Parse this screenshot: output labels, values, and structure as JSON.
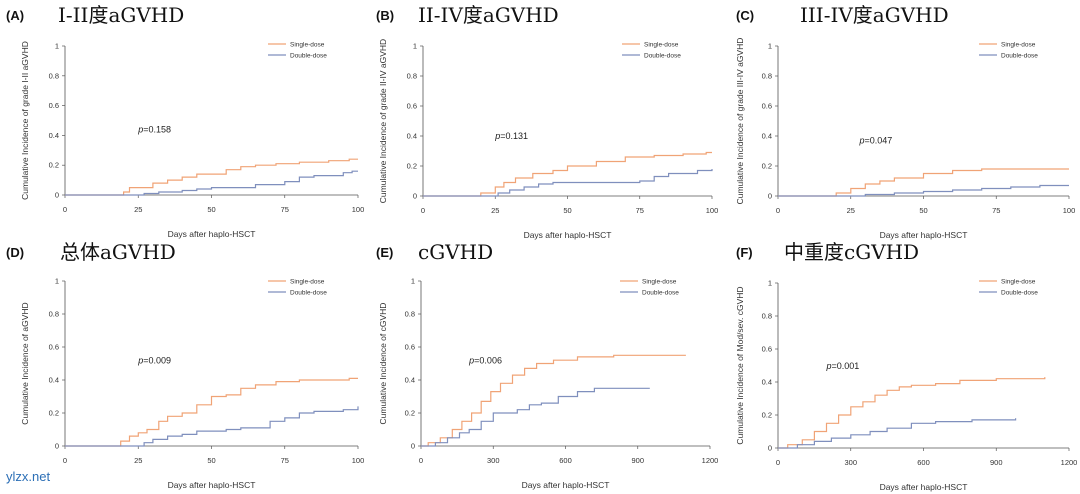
{
  "watermark": "ylzx.net",
  "colors": {
    "single": "#f0a376",
    "double": "#7f8fbd",
    "axis": "#555555"
  },
  "chart_data": [
    {
      "type": "line",
      "panel": "(A)",
      "title": "I-II度aGVHD",
      "ylabel": "Cumulative Incidence of grade I-II aGVHD",
      "xlabel": "Days after haplo-HSCT",
      "xlim": [
        0,
        100
      ],
      "ylim": [
        0,
        1
      ],
      "xticks": [
        "0",
        "25",
        "50",
        "75",
        "100"
      ],
      "yticks": [
        "0",
        "0.2",
        "0.4",
        "0.6",
        "0.8",
        "1"
      ],
      "pvalue_prefix": "p",
      "pvalue_text": "=0.158",
      "pvalue_at": [
        25,
        0.42
      ],
      "series": [
        {
          "name": "Single-dose",
          "points": [
            [
              0,
              0
            ],
            [
              18,
              0
            ],
            [
              20,
              0.02
            ],
            [
              22,
              0.05
            ],
            [
              28,
              0.05
            ],
            [
              30,
              0.08
            ],
            [
              35,
              0.1
            ],
            [
              40,
              0.12
            ],
            [
              45,
              0.14
            ],
            [
              55,
              0.17
            ],
            [
              60,
              0.19
            ],
            [
              65,
              0.2
            ],
            [
              72,
              0.21
            ],
            [
              80,
              0.22
            ],
            [
              90,
              0.23
            ],
            [
              97,
              0.24
            ],
            [
              100,
              0.24
            ]
          ]
        },
        {
          "name": "Double-dose",
          "points": [
            [
              0,
              0
            ],
            [
              25,
              0
            ],
            [
              27,
              0.01
            ],
            [
              32,
              0.02
            ],
            [
              40,
              0.03
            ],
            [
              45,
              0.04
            ],
            [
              50,
              0.05
            ],
            [
              65,
              0.07
            ],
            [
              75,
              0.09
            ],
            [
              80,
              0.12
            ],
            [
              85,
              0.13
            ],
            [
              95,
              0.15
            ],
            [
              98,
              0.16
            ],
            [
              100,
              0.16
            ]
          ]
        }
      ]
    },
    {
      "type": "line",
      "panel": "(B)",
      "title": "II-IV度aGVHD",
      "ylabel": "Cumulative Incidence of grade II-IV aGVHD",
      "xlabel": "Days after haplo-HSCT",
      "xlim": [
        0,
        100
      ],
      "ylim": [
        0,
        1
      ],
      "xticks": [
        "0",
        "25",
        "50",
        "75",
        "100"
      ],
      "yticks": [
        "0",
        "0.2",
        "0.4",
        "0.6",
        "0.8",
        "1"
      ],
      "pvalue_prefix": "p",
      "pvalue_text": "=0.131",
      "pvalue_at": [
        25,
        0.38
      ],
      "series": [
        {
          "name": "Single-dose",
          "points": [
            [
              0,
              0
            ],
            [
              17,
              0
            ],
            [
              20,
              0.02
            ],
            [
              25,
              0.06
            ],
            [
              28,
              0.09
            ],
            [
              32,
              0.12
            ],
            [
              38,
              0.15
            ],
            [
              45,
              0.17
            ],
            [
              50,
              0.2
            ],
            [
              60,
              0.23
            ],
            [
              70,
              0.26
            ],
            [
              80,
              0.27
            ],
            [
              90,
              0.28
            ],
            [
              98,
              0.29
            ],
            [
              100,
              0.29
            ]
          ]
        },
        {
          "name": "Double-dose",
          "points": [
            [
              0,
              0
            ],
            [
              23,
              0
            ],
            [
              26,
              0.02
            ],
            [
              30,
              0.04
            ],
            [
              35,
              0.06
            ],
            [
              40,
              0.08
            ],
            [
              45,
              0.09
            ],
            [
              75,
              0.1
            ],
            [
              80,
              0.13
            ],
            [
              85,
              0.15
            ],
            [
              95,
              0.17
            ],
            [
              100,
              0.18
            ]
          ]
        }
      ]
    },
    {
      "type": "line",
      "panel": "(C)",
      "title": "III-IV度aGVHD",
      "ylabel": "Cumulative Incidence of grade III-IV aGVHD",
      "xlabel": "Days after haplo-HSCT",
      "xlim": [
        0,
        100
      ],
      "ylim": [
        0,
        1
      ],
      "xticks": [
        "0",
        "25",
        "50",
        "75",
        "100"
      ],
      "yticks": [
        "0",
        "0.2",
        "0.4",
        "0.6",
        "0.8",
        "1"
      ],
      "pvalue_prefix": "p",
      "pvalue_text": "=0.047",
      "pvalue_at": [
        28,
        0.35
      ],
      "series": [
        {
          "name": "Single-dose",
          "points": [
            [
              0,
              0
            ],
            [
              16,
              0
            ],
            [
              20,
              0.02
            ],
            [
              25,
              0.05
            ],
            [
              30,
              0.08
            ],
            [
              35,
              0.1
            ],
            [
              40,
              0.12
            ],
            [
              50,
              0.15
            ],
            [
              60,
              0.17
            ],
            [
              70,
              0.18
            ],
            [
              100,
              0.18
            ]
          ]
        },
        {
          "name": "Double-dose",
          "points": [
            [
              0,
              0
            ],
            [
              22,
              0
            ],
            [
              30,
              0.01
            ],
            [
              40,
              0.02
            ],
            [
              50,
              0.03
            ],
            [
              60,
              0.04
            ],
            [
              70,
              0.05
            ],
            [
              80,
              0.06
            ],
            [
              90,
              0.07
            ],
            [
              100,
              0.07
            ]
          ]
        }
      ]
    },
    {
      "type": "line",
      "panel": "(D)",
      "title": "总体aGVHD",
      "ylabel": "Cumulative Incidence of aGVHD",
      "xlabel": "Days after haplo-HSCT",
      "xlim": [
        0,
        100
      ],
      "ylim": [
        0,
        1
      ],
      "xticks": [
        "0",
        "25",
        "50",
        "75",
        "100"
      ],
      "yticks": [
        "0",
        "0.2",
        "0.4",
        "0.6",
        "0.8",
        "1"
      ],
      "pvalue_prefix": "p",
      "pvalue_text": "=0.009",
      "pvalue_at": [
        25,
        0.5
      ],
      "series": [
        {
          "name": "Single-dose",
          "points": [
            [
              0,
              0
            ],
            [
              17,
              0
            ],
            [
              19,
              0.03
            ],
            [
              22,
              0.06
            ],
            [
              25,
              0.08
            ],
            [
              28,
              0.1
            ],
            [
              32,
              0.15
            ],
            [
              35,
              0.18
            ],
            [
              40,
              0.2
            ],
            [
              45,
              0.25
            ],
            [
              50,
              0.3
            ],
            [
              55,
              0.31
            ],
            [
              60,
              0.35
            ],
            [
              65,
              0.37
            ],
            [
              72,
              0.39
            ],
            [
              80,
              0.4
            ],
            [
              90,
              0.4
            ],
            [
              97,
              0.41
            ],
            [
              100,
              0.41
            ]
          ]
        },
        {
          "name": "Double-dose",
          "points": [
            [
              0,
              0
            ],
            [
              25,
              0
            ],
            [
              27,
              0.02
            ],
            [
              30,
              0.04
            ],
            [
              35,
              0.06
            ],
            [
              40,
              0.07
            ],
            [
              45,
              0.09
            ],
            [
              55,
              0.1
            ],
            [
              60,
              0.11
            ],
            [
              70,
              0.15
            ],
            [
              75,
              0.17
            ],
            [
              80,
              0.2
            ],
            [
              85,
              0.21
            ],
            [
              95,
              0.22
            ],
            [
              100,
              0.24
            ]
          ]
        }
      ]
    },
    {
      "type": "line",
      "panel": "(E)",
      "title": "cGVHD",
      "ylabel": "Cumulative Incidence of cGVHD",
      "xlabel": "Days after haplo-HSCT",
      "xlim": [
        0,
        1200
      ],
      "ylim": [
        0,
        1
      ],
      "xticks": [
        "0",
        "300",
        "600",
        "900",
        "1200"
      ],
      "yticks": [
        "0",
        "0.2",
        "0.4",
        "0.6",
        "0.8",
        "1"
      ],
      "pvalue_prefix": "p",
      "pvalue_text": "=0.006",
      "pvalue_at": [
        200,
        0.5
      ],
      "series": [
        {
          "name": "Single-dose",
          "points": [
            [
              0,
              0
            ],
            [
              30,
              0.02
            ],
            [
              80,
              0.05
            ],
            [
              130,
              0.1
            ],
            [
              170,
              0.15
            ],
            [
              210,
              0.2
            ],
            [
              250,
              0.27
            ],
            [
              290,
              0.33
            ],
            [
              330,
              0.38
            ],
            [
              380,
              0.43
            ],
            [
              430,
              0.47
            ],
            [
              480,
              0.5
            ],
            [
              550,
              0.52
            ],
            [
              650,
              0.54
            ],
            [
              800,
              0.55
            ],
            [
              1100,
              0.55
            ]
          ]
        },
        {
          "name": "Double-dose",
          "points": [
            [
              0,
              0
            ],
            [
              60,
              0.02
            ],
            [
              110,
              0.05
            ],
            [
              160,
              0.08
            ],
            [
              200,
              0.1
            ],
            [
              250,
              0.15
            ],
            [
              300,
              0.2
            ],
            [
              400,
              0.22
            ],
            [
              450,
              0.25
            ],
            [
              500,
              0.26
            ],
            [
              570,
              0.3
            ],
            [
              650,
              0.33
            ],
            [
              720,
              0.35
            ],
            [
              950,
              0.35
            ]
          ]
        }
      ]
    },
    {
      "type": "line",
      "panel": "(F)",
      "title": "中重度cGVHD",
      "ylabel": "Cumulative Incidence of Mod/sev. cGVHD",
      "xlabel": "Days after haplo-HSCT",
      "xlim": [
        0,
        1200
      ],
      "ylim": [
        0,
        1
      ],
      "xticks": [
        "0",
        "300",
        "600",
        "900",
        "1200"
      ],
      "yticks": [
        "0",
        "0.2",
        "0.4",
        "0.6",
        "0.8",
        "1"
      ],
      "pvalue_prefix": "p",
      "pvalue_text": "=0.001",
      "pvalue_at": [
        200,
        0.48
      ],
      "series": [
        {
          "name": "Single-dose",
          "points": [
            [
              0,
              0
            ],
            [
              40,
              0.02
            ],
            [
              100,
              0.05
            ],
            [
              150,
              0.1
            ],
            [
              200,
              0.15
            ],
            [
              250,
              0.2
            ],
            [
              300,
              0.25
            ],
            [
              350,
              0.28
            ],
            [
              400,
              0.32
            ],
            [
              450,
              0.35
            ],
            [
              500,
              0.37
            ],
            [
              550,
              0.38
            ],
            [
              650,
              0.39
            ],
            [
              750,
              0.41
            ],
            [
              900,
              0.42
            ],
            [
              1100,
              0.43
            ]
          ]
        },
        {
          "name": "Double-dose",
          "points": [
            [
              0,
              0
            ],
            [
              80,
              0.02
            ],
            [
              150,
              0.04
            ],
            [
              220,
              0.06
            ],
            [
              300,
              0.08
            ],
            [
              380,
              0.1
            ],
            [
              450,
              0.12
            ],
            [
              550,
              0.15
            ],
            [
              650,
              0.16
            ],
            [
              800,
              0.17
            ],
            [
              980,
              0.18
            ]
          ]
        }
      ]
    }
  ]
}
